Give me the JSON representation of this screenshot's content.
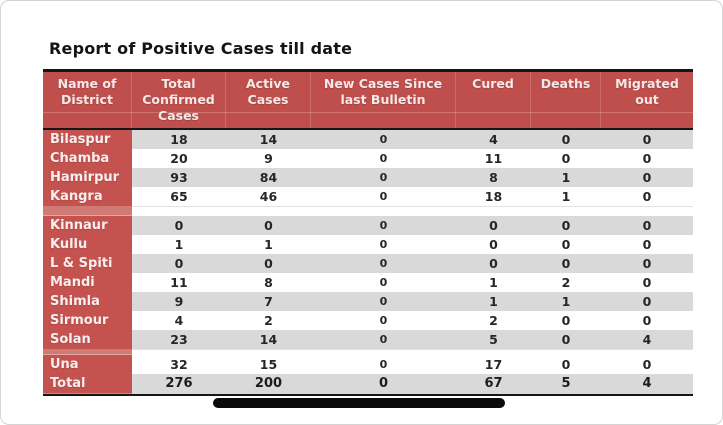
{
  "page": {
    "title": "Report of Positive Cases till date"
  },
  "table": {
    "headers": [
      "Name of\nDistrict",
      "Total\nConfirmed\nCases",
      "Active\nCases",
      "New Cases Since\nlast Bulletin",
      "Cured",
      "Deaths",
      "Migrated\nout"
    ],
    "column_keys": [
      "district",
      "total_confirmed",
      "active",
      "new_cases_since_last_bulletin",
      "cured",
      "deaths",
      "migrated_out"
    ],
    "groups": [
      {
        "rows": [
          {
            "district": "Bilaspur",
            "values": [
              "18",
              "14",
              "0",
              "4",
              "0",
              "0"
            ]
          },
          {
            "district": "Chamba",
            "values": [
              "20",
              "9",
              "0",
              "11",
              "0",
              "0"
            ]
          },
          {
            "district": "Hamirpur",
            "values": [
              "93",
              "84",
              "0",
              "8",
              "1",
              "0"
            ]
          },
          {
            "district": "Kangra",
            "values": [
              "65",
              "46",
              "0",
              "18",
              "1",
              "0"
            ]
          }
        ]
      },
      {
        "rows": [
          {
            "district": "Kinnaur",
            "values": [
              "0",
              "0",
              "0",
              "0",
              "0",
              "0"
            ]
          },
          {
            "district": "Kullu",
            "values": [
              "1",
              "1",
              "0",
              "0",
              "0",
              "0"
            ]
          },
          {
            "district": "L & Spiti",
            "values": [
              "0",
              "0",
              "0",
              "0",
              "0",
              "0"
            ]
          },
          {
            "district": "Mandi",
            "values": [
              "11",
              "8",
              "0",
              "1",
              "2",
              "0"
            ]
          },
          {
            "district": "Shimla",
            "values": [
              "9",
              "7",
              "0",
              "1",
              "1",
              "0"
            ]
          },
          {
            "district": "Sirmour",
            "values": [
              "4",
              "2",
              "0",
              "2",
              "0",
              "0"
            ]
          },
          {
            "district": "Solan",
            "values": [
              "23",
              "14",
              "0",
              "5",
              "0",
              "4"
            ]
          }
        ]
      },
      {
        "rows": [
          {
            "district": "Una",
            "values": [
              "32",
              "15",
              "0",
              "17",
              "0",
              "0"
            ]
          },
          {
            "district": "Total",
            "values": [
              "276",
              "200",
              "0",
              "67",
              "5",
              "4"
            ],
            "is_total": true
          }
        ]
      }
    ]
  },
  "colors": {
    "header_red": "#bf4f4c",
    "district_red": "#c4534f",
    "stripe_gray": "#d9d9d9",
    "row_white": "#ffffff",
    "border_black": "#161616",
    "header_text": "#f7e9e8",
    "body_text": "#262626"
  }
}
